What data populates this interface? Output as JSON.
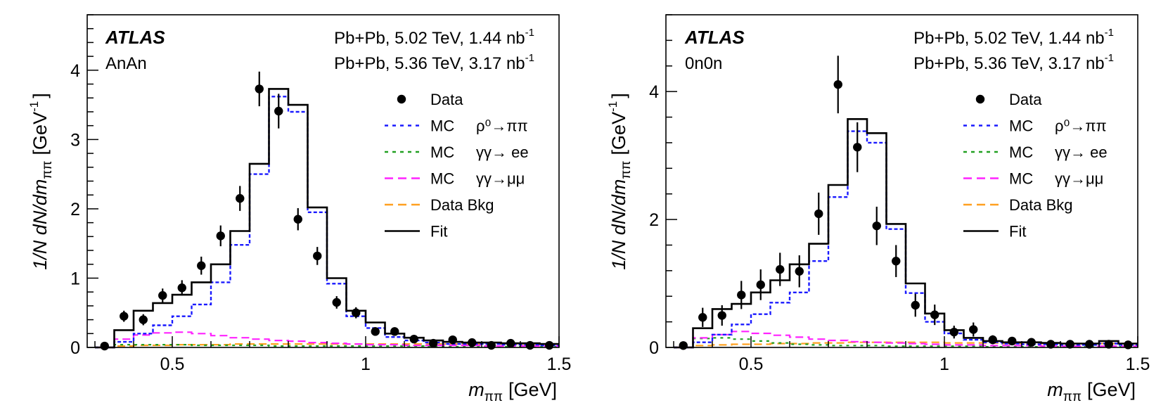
{
  "chart_data": [
    {
      "type": "line",
      "panel": "left",
      "experiment": "ATLAS",
      "selection": "AnAn",
      "datasets": [
        "Pb+Pb, 5.02 TeV, 1.44 nb",
        "Pb+Pb, 5.36 TeV, 3.17 nb"
      ],
      "dataset_superscript": "-1",
      "xlabel": "m",
      "xlabel_sub": "ππ",
      "xlabel_unit": "[GeV]",
      "ylabel": "1/N dN/dm",
      "ylabel_sub": "ππ",
      "ylabel_unit": "[GeV",
      "ylabel_unit_sup": "-1",
      "ylabel_unit_close": "]",
      "xlim": [
        0.28,
        1.5
      ],
      "ylim": [
        0,
        4.8
      ],
      "xticks": [
        0.5,
        1,
        1.5
      ],
      "xtick_labels": [
        "0.5",
        "1",
        "1.5"
      ],
      "yticks": [
        0,
        1,
        2,
        3,
        4
      ],
      "ytick_labels": [
        "0",
        "1",
        "2",
        "3",
        "4"
      ],
      "bin_edges": [
        0.3,
        0.35,
        0.4,
        0.45,
        0.5,
        0.55,
        0.6,
        0.65,
        0.7,
        0.75,
        0.8,
        0.85,
        0.9,
        0.95,
        1.0,
        1.05,
        1.1,
        1.15,
        1.2,
        1.25,
        1.3,
        1.35,
        1.4,
        1.45,
        1.5
      ],
      "legend": [
        {
          "label": "Data",
          "style": "marker"
        },
        {
          "label": "MC",
          "process": "ρ⁰→ππ",
          "style": "dotted",
          "color": "#1a1aff"
        },
        {
          "label": "MC",
          "process": "γγ→ ee",
          "style": "dotted",
          "color": "#22a022"
        },
        {
          "label": "MC",
          "process": "γγ→μμ",
          "style": "dashed",
          "color": "#ff22ff"
        },
        {
          "label": "Data Bkg",
          "process": "",
          "style": "dashed",
          "color": "#ffa020"
        },
        {
          "label": "Fit",
          "process": "",
          "style": "solid",
          "color": "#000000"
        }
      ],
      "series": [
        {
          "name": "Fit",
          "values": [
            0,
            0.25,
            0.53,
            0.64,
            0.76,
            0.94,
            1.2,
            1.68,
            2.65,
            3.73,
            3.5,
            2.02,
            1.0,
            0.53,
            0.36,
            0.2,
            0.14,
            0.1,
            0.08,
            0.07,
            0.07,
            0.06,
            0.06,
            0.05
          ]
        },
        {
          "name": "MC ρ⁰→ππ",
          "values": [
            0,
            0.08,
            0.2,
            0.32,
            0.45,
            0.62,
            0.94,
            1.48,
            2.5,
            3.62,
            3.4,
            1.95,
            0.92,
            0.45,
            0.28,
            0.15,
            0.1,
            0.07,
            0.05,
            0.05,
            0.05,
            0.04,
            0.04,
            0.03
          ]
        },
        {
          "name": "MC γγ→ ee",
          "values": [
            0,
            0.04,
            0.04,
            0.04,
            0.04,
            0.03,
            0.03,
            0.03,
            0.03,
            0.02,
            0.02,
            0.02,
            0.02,
            0.02,
            0.02,
            0.02,
            0.02,
            0.01,
            0.01,
            0.01,
            0.01,
            0.01,
            0.01,
            0.01
          ]
        },
        {
          "name": "MC γγ→μμ",
          "values": [
            0,
            0.12,
            0.18,
            0.21,
            0.22,
            0.2,
            0.17,
            0.14,
            0.12,
            0.1,
            0.09,
            0.07,
            0.06,
            0.05,
            0.04,
            0.04,
            0.03,
            0.03,
            0.03,
            0.03,
            0.02,
            0.02,
            0.02,
            0.02
          ]
        },
        {
          "name": "Data Bkg",
          "values": [
            0,
            0.02,
            0.03,
            0.03,
            0.04,
            0.04,
            0.04,
            0.05,
            0.05,
            0.05,
            0.05,
            0.05,
            0.05,
            0.05,
            0.05,
            0.05,
            0.05,
            0.05,
            0.05,
            0.05,
            0.05,
            0.05,
            0.05,
            0.05
          ]
        }
      ],
      "data_points": {
        "x": [
          0.325,
          0.375,
          0.425,
          0.475,
          0.525,
          0.575,
          0.625,
          0.675,
          0.725,
          0.775,
          0.825,
          0.875,
          0.925,
          0.975,
          1.025,
          1.075,
          1.125,
          1.175,
          1.225,
          1.275,
          1.325,
          1.375,
          1.425,
          1.475
        ],
        "y": [
          0.02,
          0.45,
          0.4,
          0.75,
          0.86,
          1.18,
          1.61,
          2.15,
          3.73,
          3.41,
          1.85,
          1.32,
          0.65,
          0.5,
          0.23,
          0.23,
          0.12,
          0.06,
          0.11,
          0.07,
          0.03,
          0.06,
          0.03,
          0.03
        ],
        "err": [
          0.02,
          0.08,
          0.08,
          0.1,
          0.11,
          0.13,
          0.15,
          0.18,
          0.25,
          0.25,
          0.16,
          0.13,
          0.09,
          0.08,
          0.06,
          0.06,
          0.04,
          0.03,
          0.04,
          0.03,
          0.02,
          0.03,
          0.02,
          0.02
        ]
      }
    },
    {
      "type": "line",
      "panel": "right",
      "experiment": "ATLAS",
      "selection": "0n0n",
      "datasets": [
        "Pb+Pb, 5.02 TeV, 1.44 nb",
        "Pb+Pb, 5.36 TeV, 3.17 nb"
      ],
      "dataset_superscript": "-1",
      "xlabel": "m",
      "xlabel_sub": "ππ",
      "xlabel_unit": "[GeV]",
      "ylabel": "1/N dN/dm",
      "ylabel_sub": "ππ",
      "ylabel_unit": "[GeV",
      "ylabel_unit_sup": "-1",
      "ylabel_unit_close": "]",
      "xlim": [
        0.28,
        1.5
      ],
      "ylim": [
        0,
        5.2
      ],
      "xticks": [
        0.5,
        1,
        1.5
      ],
      "xtick_labels": [
        "0.5",
        "1",
        "1.5"
      ],
      "yticks": [
        0,
        2,
        4
      ],
      "ytick_labels": [
        "0",
        "2",
        "4"
      ],
      "bin_edges": [
        0.3,
        0.35,
        0.4,
        0.45,
        0.5,
        0.55,
        0.6,
        0.65,
        0.7,
        0.75,
        0.8,
        0.85,
        0.9,
        0.95,
        1.0,
        1.05,
        1.1,
        1.15,
        1.2,
        1.25,
        1.3,
        1.35,
        1.4,
        1.45,
        1.5
      ],
      "legend": [
        {
          "label": "Data",
          "style": "marker"
        },
        {
          "label": "MC",
          "process": "ρ⁰→ππ",
          "style": "dotted",
          "color": "#1a1aff"
        },
        {
          "label": "MC",
          "process": "γγ→ ee",
          "style": "dotted",
          "color": "#22a022"
        },
        {
          "label": "MC",
          "process": "γγ→μμ",
          "style": "dashed",
          "color": "#ff22ff"
        },
        {
          "label": "Data Bkg",
          "process": "",
          "style": "dashed",
          "color": "#ffa020"
        },
        {
          "label": "Fit",
          "process": "",
          "style": "solid",
          "color": "#000000"
        }
      ],
      "series": [
        {
          "name": "Fit",
          "values": [
            0,
            0.3,
            0.6,
            0.68,
            0.86,
            1.05,
            1.3,
            1.62,
            2.54,
            3.57,
            3.35,
            1.93,
            1.0,
            0.53,
            0.27,
            0.15,
            0.1,
            0.08,
            0.08,
            0.07,
            0.06,
            0.06,
            0.1,
            0.06
          ]
        },
        {
          "name": "MC ρ⁰→ππ",
          "values": [
            0,
            0.08,
            0.2,
            0.36,
            0.52,
            0.7,
            0.86,
            1.35,
            2.35,
            3.38,
            3.2,
            1.85,
            0.85,
            0.4,
            0.22,
            0.12,
            0.08,
            0.06,
            0.05,
            0.05,
            0.04,
            0.04,
            0.06,
            0.04
          ]
        },
        {
          "name": "MC γγ→ ee",
          "values": [
            0,
            0.14,
            0.15,
            0.13,
            0.1,
            0.07,
            0.05,
            0.04,
            0.03,
            0.03,
            0.03,
            0.02,
            0.02,
            0.02,
            0.02,
            0.02,
            0.01,
            0.01,
            0.01,
            0.01,
            0.01,
            0.01,
            0.01,
            0.01
          ]
        },
        {
          "name": "MC γγ→μμ",
          "values": [
            0,
            0.15,
            0.2,
            0.25,
            0.22,
            0.19,
            0.16,
            0.13,
            0.11,
            0.09,
            0.08,
            0.07,
            0.06,
            0.05,
            0.04,
            0.04,
            0.03,
            0.03,
            0.03,
            0.02,
            0.02,
            0.02,
            0.02,
            0.02
          ]
        },
        {
          "name": "Data Bkg",
          "values": [
            0,
            0.03,
            0.04,
            0.05,
            0.05,
            0.06,
            0.06,
            0.07,
            0.07,
            0.08,
            0.08,
            0.08,
            0.08,
            0.08,
            0.07,
            0.07,
            0.07,
            0.06,
            0.06,
            0.06,
            0.06,
            0.06,
            0.06,
            0.06
          ]
        }
      ],
      "data_points": {
        "x": [
          0.325,
          0.375,
          0.425,
          0.475,
          0.525,
          0.575,
          0.625,
          0.675,
          0.725,
          0.775,
          0.825,
          0.875,
          0.925,
          0.975,
          1.025,
          1.075,
          1.125,
          1.175,
          1.225,
          1.275,
          1.325,
          1.375,
          1.425,
          1.475
        ],
        "y": [
          0.03,
          0.47,
          0.5,
          0.82,
          0.98,
          1.22,
          1.19,
          2.09,
          4.11,
          3.13,
          1.9,
          1.35,
          0.66,
          0.51,
          0.24,
          0.28,
          0.12,
          0.1,
          0.08,
          0.05,
          0.05,
          0.05,
          0.05,
          0.04
        ],
        "err": [
          0.03,
          0.15,
          0.16,
          0.22,
          0.24,
          0.26,
          0.25,
          0.33,
          0.45,
          0.39,
          0.3,
          0.25,
          0.18,
          0.16,
          0.1,
          0.11,
          0.07,
          0.06,
          0.05,
          0.04,
          0.04,
          0.04,
          0.04,
          0.04
        ]
      }
    }
  ]
}
